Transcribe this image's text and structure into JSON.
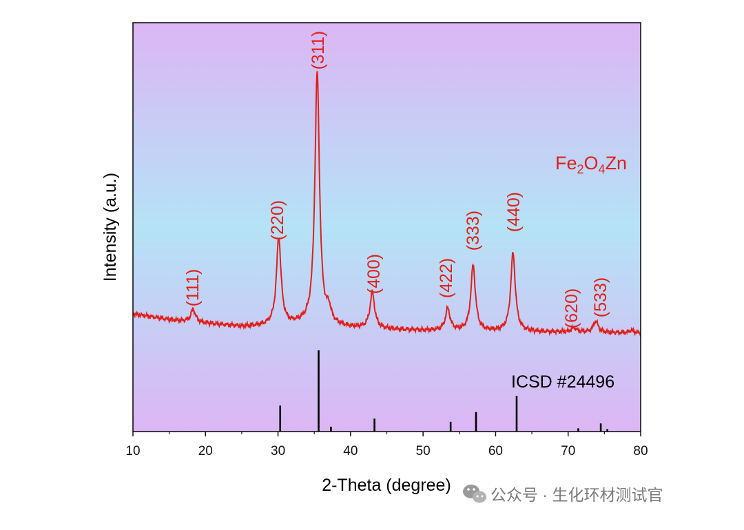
{
  "chart_data": {
    "type": "line",
    "title": "",
    "xlabel": "2-Theta (degree)",
    "ylabel": "Intensity (a.u.)",
    "xlim": [
      10,
      80
    ],
    "xticks": [
      10,
      20,
      30,
      40,
      50,
      60,
      70,
      80
    ],
    "yticks_shown": false,
    "background": {
      "top": "#dcb6f4",
      "middle": "#b5e2f6",
      "bottom": "#dcb6f4"
    },
    "series": [
      {
        "name": "Fe2O4Zn",
        "label_parts": [
          {
            "text": "Fe",
            "sub": false
          },
          {
            "text": "2",
            "sub": true
          },
          {
            "text": "O",
            "sub": false
          },
          {
            "text": "4",
            "sub": true
          },
          {
            "text": "Zn",
            "sub": false
          }
        ],
        "color": "#e0201a",
        "baseline": [
          [
            10,
            0.105
          ],
          [
            15,
            0.082
          ],
          [
            20,
            0.068
          ],
          [
            25,
            0.055
          ],
          [
            30,
            0.06
          ],
          [
            35,
            0.066
          ],
          [
            40,
            0.05
          ],
          [
            50,
            0.04
          ],
          [
            60,
            0.036
          ],
          [
            70,
            0.034
          ],
          [
            80,
            0.03
          ]
        ],
        "peaks": [
          {
            "two_theta": 18.3,
            "intensity": 0.05,
            "hkl": "(111)"
          },
          {
            "two_theta": 30.1,
            "intensity": 0.34,
            "hkl": "(220)"
          },
          {
            "two_theta": 35.4,
            "intensity": 0.98,
            "hkl": "(311)"
          },
          {
            "two_theta": 37.0,
            "intensity": 0.05
          },
          {
            "two_theta": 43.0,
            "intensity": 0.14,
            "hkl": "(400)"
          },
          {
            "two_theta": 53.4,
            "intensity": 0.085,
            "hkl": "(422)"
          },
          {
            "two_theta": 56.9,
            "intensity": 0.255,
            "hkl": "(333)"
          },
          {
            "two_theta": 62.4,
            "intensity": 0.305,
            "hkl": "(440)"
          },
          {
            "two_theta": 70.8,
            "intensity": 0.017,
            "hkl": "(620)"
          },
          {
            "two_theta": 73.8,
            "intensity": 0.045,
            "hkl": "(533)"
          },
          {
            "two_theta": 78.7,
            "intensity": 0.01
          }
        ]
      }
    ],
    "reference": {
      "name": "ICSD #24496",
      "color": "#000000",
      "lines": [
        {
          "two_theta": 30.3,
          "intensity": 0.32
        },
        {
          "two_theta": 35.6,
          "intensity": 1.0
        },
        {
          "two_theta": 37.3,
          "intensity": 0.06
        },
        {
          "two_theta": 43.3,
          "intensity": 0.16
        },
        {
          "two_theta": 53.8,
          "intensity": 0.12
        },
        {
          "two_theta": 57.3,
          "intensity": 0.24
        },
        {
          "two_theta": 62.9,
          "intensity": 0.44
        },
        {
          "two_theta": 71.4,
          "intensity": 0.04
        },
        {
          "two_theta": 74.5,
          "intensity": 0.1
        },
        {
          "two_theta": 75.4,
          "intensity": 0.03
        }
      ]
    }
  },
  "watermark": {
    "text": "公众号 · 生化环材测试官",
    "icon": "wechat-icon"
  }
}
